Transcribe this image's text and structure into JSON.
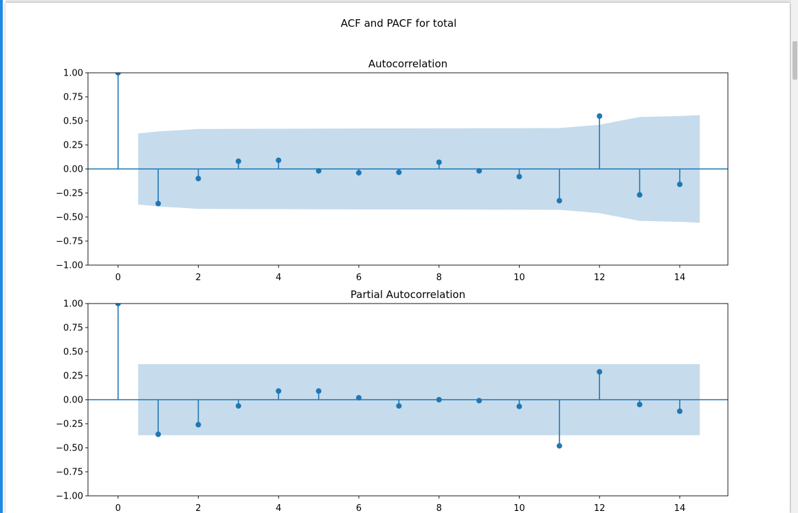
{
  "figure_title": "ACF and PACF for total",
  "colors": {
    "stem": "#1f77b4",
    "band": "#c6dbec",
    "accent": "#1e88e5"
  },
  "chart_data": [
    {
      "type": "line",
      "title": "Autocorrelation",
      "xlabel": "",
      "ylabel": "",
      "xlim": [
        -0.75,
        15.2
      ],
      "ylim": [
        -1.0,
        1.0
      ],
      "xticks": [
        0,
        2,
        4,
        6,
        8,
        10,
        12,
        14
      ],
      "xtick_labels": [
        "0",
        "2",
        "4",
        "6",
        "8",
        "10",
        "12",
        "14"
      ],
      "yticks": [
        1.0,
        0.75,
        0.5,
        0.25,
        0.0,
        -0.25,
        -0.5,
        -0.75,
        -1.0
      ],
      "ytick_labels": [
        "1.00",
        "0.75",
        "0.50",
        "0.25",
        "0.00",
        "−0.25",
        "−0.50",
        "−0.75",
        "−1.00"
      ],
      "lags": [
        0,
        1,
        2,
        3,
        4,
        5,
        6,
        7,
        8,
        9,
        10,
        11,
        12,
        13,
        14
      ],
      "values": [
        1.0,
        -0.36,
        -0.1,
        0.08,
        0.09,
        -0.02,
        -0.04,
        -0.035,
        0.07,
        -0.02,
        -0.08,
        -0.33,
        0.55,
        -0.27,
        -0.16
      ],
      "confidence_band": {
        "x": [
          0.5,
          1,
          2,
          3,
          4,
          5,
          6,
          7,
          8,
          9,
          10,
          11,
          12,
          13,
          14,
          14.5
        ],
        "upper": [
          0.37,
          0.39,
          0.415,
          0.417,
          0.418,
          0.42,
          0.421,
          0.421,
          0.422,
          0.423,
          0.424,
          0.425,
          0.46,
          0.54,
          0.55,
          0.56
        ]
      },
      "grid": false
    },
    {
      "type": "line",
      "title": "Partial Autocorrelation",
      "xlabel": "",
      "ylabel": "",
      "xlim": [
        -0.75,
        15.2
      ],
      "ylim": [
        -1.0,
        1.0
      ],
      "xticks": [
        0,
        2,
        4,
        6,
        8,
        10,
        12,
        14
      ],
      "xtick_labels": [
        "0",
        "2",
        "4",
        "6",
        "8",
        "10",
        "12",
        "14"
      ],
      "yticks": [
        1.0,
        0.75,
        0.5,
        0.25,
        0.0,
        -0.25,
        -0.5,
        -0.75,
        -1.0
      ],
      "ytick_labels": [
        "1.00",
        "0.75",
        "0.50",
        "0.25",
        "0.00",
        "−0.25",
        "−0.50",
        "−0.75",
        "−1.00"
      ],
      "lags": [
        0,
        1,
        2,
        3,
        4,
        5,
        6,
        7,
        8,
        9,
        10,
        11,
        12,
        13,
        14
      ],
      "values": [
        1.0,
        -0.36,
        -0.26,
        -0.065,
        0.09,
        0.09,
        0.02,
        -0.065,
        0.0,
        -0.01,
        -0.07,
        -0.48,
        0.29,
        -0.05,
        -0.12
      ],
      "confidence_band": {
        "x": [
          0.5,
          14.5
        ],
        "upper": [
          0.37,
          0.37
        ]
      },
      "grid": false
    }
  ]
}
